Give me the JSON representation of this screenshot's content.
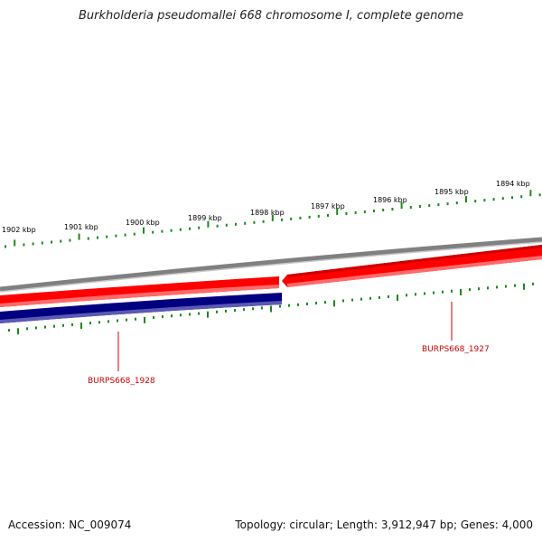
{
  "title": "Burkholderia pseudomallei 668 chromosome I, complete genome",
  "footer": {
    "accession": "Accession: NC_009074",
    "summary": "Topology: circular; Length: 3,912,947 bp; Genes: 4,000"
  },
  "scale": {
    "labels": [
      "1902 kbp",
      "1901 kbp",
      "1900 kbp",
      "1899 kbp",
      "1898 kbp",
      "1897 kbp",
      "1896 kbp",
      "1895 kbp",
      "1894 kbp"
    ]
  },
  "genes": [
    {
      "name": "BURPS668_1928",
      "strand": "reverse",
      "color": "#000080"
    },
    {
      "name": "BURPS668_1927",
      "strand": "reverse",
      "color": "#ff0000"
    }
  ],
  "colors": {
    "backbone": "#808080",
    "forward_feature": "#ff0000",
    "reverse_feature": "#000080",
    "ticks": "#1a8a1a",
    "label": "#cc0000"
  }
}
